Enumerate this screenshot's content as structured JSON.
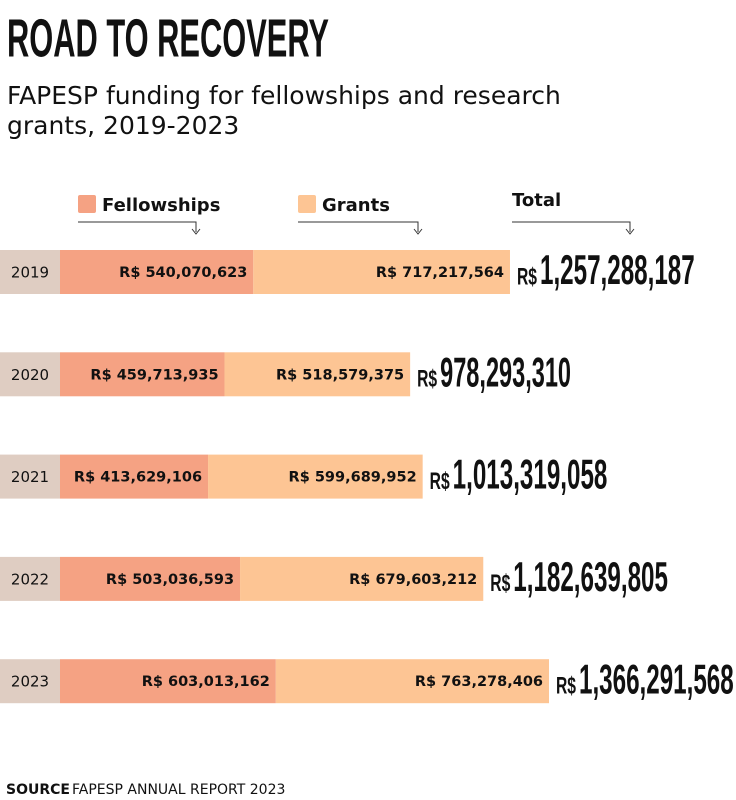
{
  "chart_data": {
    "type": "bar",
    "orientation": "horizontal",
    "stacked": true,
    "title": "ROAD TO RECOVERY",
    "subtitle": [
      "FAPESP funding for fellowships and research",
      "grants, 2019-2023"
    ],
    "categories": [
      "2019",
      "2020",
      "2021",
      "2022",
      "2023"
    ],
    "series": [
      {
        "name": "Fellowships",
        "color": "#f5a283",
        "values": [
          540070623,
          459713935,
          413629106,
          503036593,
          603013162
        ],
        "value_labels": [
          "R$ 540,070,623",
          "R$ 459,713,935",
          "R$ 413,629,106",
          "R$ 503,036,593",
          "R$ 603,013,162"
        ]
      },
      {
        "name": "Grants",
        "color": "#fdc594",
        "values": [
          717217564,
          518579375,
          599689952,
          679603212,
          763278406
        ],
        "value_labels": [
          "R$ 717,217,564",
          "R$ 518,579,375",
          "R$ 599,689,952",
          "R$ 679,603,212",
          "R$ 763,278,406"
        ]
      }
    ],
    "total_name": "Total",
    "total_prefix": "R$",
    "totals": [
      1257288187,
      978293310,
      1013319058,
      1182639805,
      1366291568
    ],
    "total_labels": [
      "1,257,288,187",
      "978,293,310",
      "1,013,319,058",
      "1,182,639,805",
      "1,366,291,568"
    ],
    "source_label": "SOURCE",
    "source": "FAPESP ANNUAL REPORT 2023"
  }
}
